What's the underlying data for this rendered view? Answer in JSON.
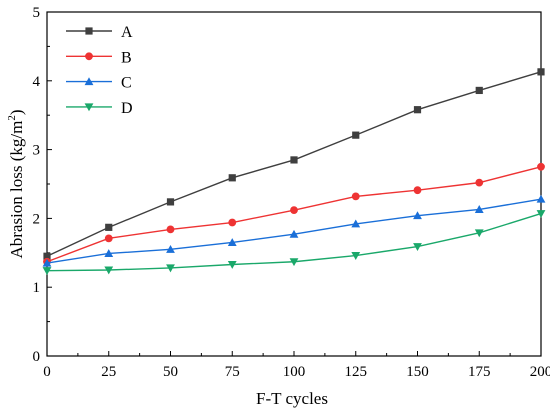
{
  "chart_data": {
    "type": "line",
    "title": "",
    "xlabel": "F-T cycles",
    "ylabel": "Abrasion loss (kg/m",
    "ylabel_sup": "2",
    "ylabel_close": ")",
    "x": [
      0,
      25,
      50,
      75,
      100,
      125,
      150,
      175,
      200
    ],
    "xticks": [
      "0",
      "25",
      "50",
      "75",
      "100",
      "125",
      "150",
      "175",
      "200"
    ],
    "yticks": [
      "0",
      "1",
      "2",
      "3",
      "4",
      "5"
    ],
    "xlim": [
      0,
      200
    ],
    "ylim": [
      0,
      5
    ],
    "grid": false,
    "legend_position": "top-left",
    "series": [
      {
        "name": "A",
        "color": "#3f3f3f",
        "marker": "square",
        "values": [
          1.45,
          1.87,
          2.24,
          2.59,
          2.85,
          3.21,
          3.58,
          3.86,
          4.13
        ]
      },
      {
        "name": "B",
        "color": "#ee3333",
        "marker": "circle",
        "values": [
          1.37,
          1.71,
          1.84,
          1.94,
          2.12,
          2.32,
          2.41,
          2.52,
          2.75
        ]
      },
      {
        "name": "C",
        "color": "#1a6fd8",
        "marker": "triangle-up",
        "values": [
          1.35,
          1.49,
          1.55,
          1.65,
          1.77,
          1.92,
          2.04,
          2.13,
          2.28
        ]
      },
      {
        "name": "D",
        "color": "#1aa86a",
        "marker": "triangle-down",
        "values": [
          1.24,
          1.25,
          1.28,
          1.33,
          1.37,
          1.46,
          1.59,
          1.79,
          2.07
        ]
      }
    ]
  }
}
